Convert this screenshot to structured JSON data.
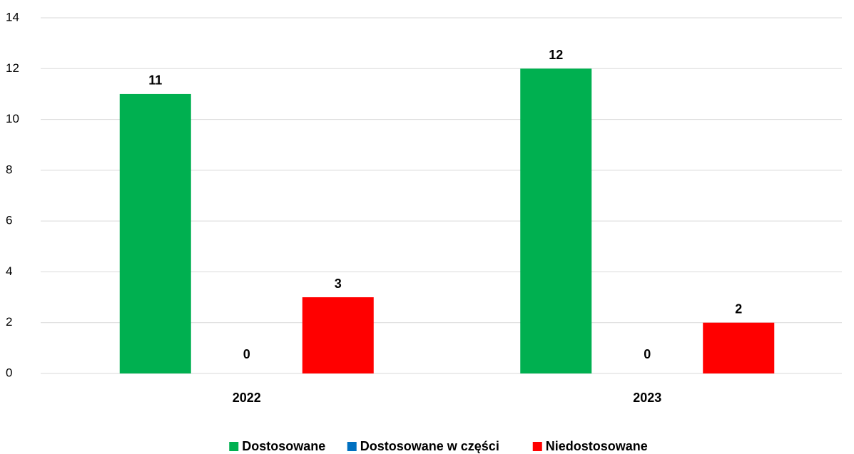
{
  "chart_data": {
    "type": "bar",
    "categories": [
      "2022",
      "2023"
    ],
    "series": [
      {
        "name": "Dostosowane",
        "color": "#00b050",
        "values": [
          11,
          12
        ]
      },
      {
        "name": "Dostosowane w części",
        "color": "#0070c0",
        "values": [
          0,
          0
        ]
      },
      {
        "name": "Niedostosowane",
        "color": "#ff0000",
        "values": [
          3,
          2
        ]
      }
    ],
    "ylim": [
      0,
      14
    ],
    "yticks": [
      0,
      2,
      4,
      6,
      8,
      10,
      12,
      14
    ],
    "grid": true,
    "legend": "bottom"
  }
}
